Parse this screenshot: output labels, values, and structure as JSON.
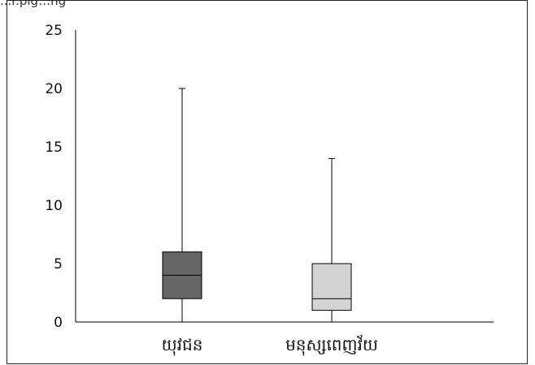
{
  "caption_fragment": "...r.pig…ng",
  "chart_data": {
    "type": "boxplot",
    "title": "",
    "xlabel": "",
    "ylabel": "",
    "ylim": [
      0,
      25
    ],
    "yticks": [
      0,
      5,
      10,
      15,
      20,
      25
    ],
    "grid": false,
    "categories": [
      "យុវជន",
      "មនុស្សពេញវ័យ"
    ],
    "boxes": [
      {
        "category": "យុវជន",
        "min": 0,
        "q1": 2,
        "median": 4,
        "q3": 6,
        "max": 20,
        "color": "#666666"
      },
      {
        "category": "មនុស្សពេញវ័យ",
        "min": 0,
        "q1": 1,
        "median": 2,
        "q3": 5,
        "max": 14,
        "color": "#d3d3d3"
      }
    ]
  }
}
